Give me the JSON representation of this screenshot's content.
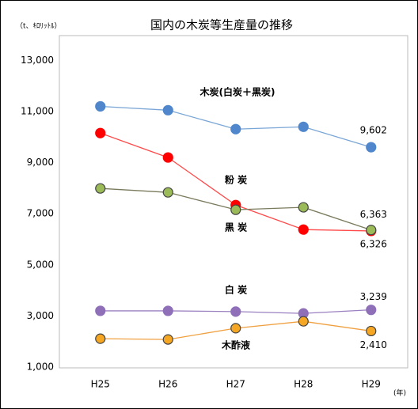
{
  "chart_data": {
    "type": "line",
    "title": "国内の木炭等生産量の推移",
    "y_unit": "（t、ｷﾛﾘｯﾄﾙ）",
    "x_unit": "(年)",
    "categories": [
      "H25",
      "H26",
      "H27",
      "H28",
      "H29"
    ],
    "ylim": [
      1000,
      14000
    ],
    "yticks": [
      {
        "value": 1000,
        "label": "1,000"
      },
      {
        "value": 3000,
        "label": "3,000"
      },
      {
        "value": 5000,
        "label": "5,000"
      },
      {
        "value": 7000,
        "label": "7,000"
      },
      {
        "value": 9000,
        "label": "9,000"
      },
      {
        "value": 11000,
        "label": "11,000"
      },
      {
        "value": 13000,
        "label": "13,000"
      }
    ],
    "grid": false,
    "series": [
      {
        "name": "木炭(白炭＋黒炭)",
        "color": "#4f86cc",
        "line_color": "#7aa6d6",
        "values": [
          11200,
          11050,
          10310,
          10400,
          9602
        ],
        "value_labels": [
          null,
          null,
          null,
          null,
          "9,602"
        ]
      },
      {
        "name": "粉 炭",
        "color": "#ff0000",
        "line_color": "#ff4a4a",
        "values": [
          10155,
          9200,
          7340,
          6380,
          6326
        ],
        "value_labels": [
          null,
          null,
          null,
          null,
          "6,326"
        ]
      },
      {
        "name": "黒 炭",
        "color": "#9bbb59",
        "line_color": "#7a7a5c",
        "values": [
          7990,
          7835,
          7155,
          7250,
          6363
        ],
        "value_labels": [
          null,
          null,
          null,
          null,
          "6,363"
        ]
      },
      {
        "name": "白 炭",
        "color": "#8e6fb8",
        "line_color": "#9a80c0",
        "values": [
          3200,
          3200,
          3170,
          3100,
          3239
        ],
        "value_labels": [
          null,
          null,
          null,
          null,
          "3,239"
        ]
      },
      {
        "name": "木酢液",
        "color": "#f5a623",
        "line_color": "#f0a040",
        "values": [
          2110,
          2080,
          2520,
          2790,
          2410
        ],
        "value_labels": [
          null,
          null,
          null,
          null,
          "2,410"
        ]
      }
    ]
  }
}
